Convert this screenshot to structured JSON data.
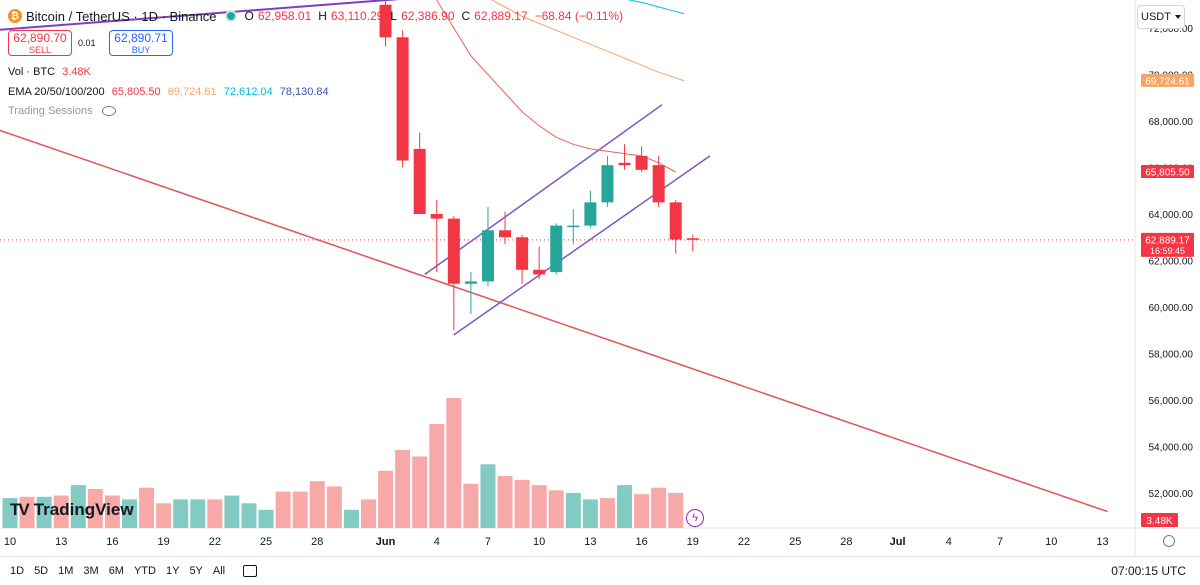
{
  "header": {
    "symbol": "Bitcoin / TetherUS · 1D · Binance",
    "ohlc": [
      {
        "key": "O",
        "value": "62,958.01"
      },
      {
        "key": "H",
        "value": "63,110.29"
      },
      {
        "key": "L",
        "value": "62,386.90"
      },
      {
        "key": "C",
        "value": "62,889.17"
      },
      {
        "key": "",
        "value": "−68.84 (−0.11%)"
      }
    ],
    "sell_price": "62,890.70",
    "sell_label": "SELL",
    "spread": "0.01",
    "buy_price": "62,890.71",
    "buy_label": "BUY",
    "vol_label": "Vol · BTC",
    "vol_value": "3.48K",
    "ema_label": "EMA 20/50/100/200",
    "ema_values": [
      "65,805.50",
      "69,724.61",
      "72,612.04",
      "78,130.84"
    ],
    "sessions_label": "Trading Sessions",
    "currency": "USDT"
  },
  "colors": {
    "up": "#26a69a",
    "down": "#f23645",
    "vol_up": "#82cbc2",
    "vol_down": "#f7a9a7",
    "ema20": "#f0605c",
    "ema50": "#f7a464",
    "ema100": "#00bcd4",
    "ema200": "#3f51b5",
    "channel": "#7e57c2",
    "trend_red": "#e0545a",
    "trend_purple": "#7e3fbf"
  },
  "brand": "TradingView",
  "periods": [
    "1D",
    "5D",
    "1M",
    "3M",
    "6M",
    "YTD",
    "1Y",
    "5Y",
    "All"
  ],
  "clock": "07:00:15 UTC",
  "chart_data": {
    "type": "candlestick",
    "xticks": [
      {
        "label": "10",
        "day": 10
      },
      {
        "label": "13",
        "day": 13
      },
      {
        "label": "16",
        "day": 16
      },
      {
        "label": "19",
        "day": 19
      },
      {
        "label": "22",
        "day": 22
      },
      {
        "label": "25",
        "day": 25
      },
      {
        "label": "28",
        "day": 28
      },
      {
        "label": "Jun",
        "day": 32
      },
      {
        "label": "4",
        "day": 35
      },
      {
        "label": "7",
        "day": 38
      },
      {
        "label": "10",
        "day": 41
      },
      {
        "label": "13",
        "day": 44
      },
      {
        "label": "16",
        "day": 47
      },
      {
        "label": "19",
        "day": 50
      },
      {
        "label": "22",
        "day": 53
      },
      {
        "label": "25",
        "day": 56
      },
      {
        "label": "28",
        "day": 59
      },
      {
        "label": "Jul",
        "day": 62
      },
      {
        "label": "4",
        "day": 65
      },
      {
        "label": "7",
        "day": 68
      },
      {
        "label": "10",
        "day": 71
      },
      {
        "label": "13",
        "day": 74
      }
    ],
    "yticks": [
      "52,000.00",
      "54,000.00",
      "56,000.00",
      "58,000.00",
      "60,000.00",
      "62,000.00",
      "64,000.00",
      "66,000.00",
      "68,000.00",
      "70,000.00",
      "72,000.00"
    ],
    "ylim": [
      51000,
      72700
    ],
    "candles": [
      {
        "day": 32,
        "o": 73000,
        "h": 73500,
        "l": 71200,
        "c": 71600
      },
      {
        "day": 33,
        "o": 71600,
        "h": 71900,
        "l": 66000,
        "c": 66300
      },
      {
        "day": 34,
        "o": 66800,
        "h": 67500,
        "l": 64000,
        "c": 64000
      },
      {
        "day": 35,
        "o": 64000,
        "h": 64600,
        "l": 61500,
        "c": 63800
      },
      {
        "day": 36,
        "o": 63800,
        "h": 63900,
        "l": 59000,
        "c": 61000
      },
      {
        "day": 37,
        "o": 61000,
        "h": 61500,
        "l": 59700,
        "c": 61100
      },
      {
        "day": 38,
        "o": 61100,
        "h": 64300,
        "l": 60900,
        "c": 63300
      },
      {
        "day": 39,
        "o": 63300,
        "h": 64100,
        "l": 62700,
        "c": 63000
      },
      {
        "day": 40,
        "o": 63000,
        "h": 63100,
        "l": 61000,
        "c": 61600
      },
      {
        "day": 41,
        "o": 61600,
        "h": 62600,
        "l": 61200,
        "c": 61400
      },
      {
        "day": 42,
        "o": 61500,
        "h": 63600,
        "l": 61400,
        "c": 63500
      },
      {
        "day": 43,
        "o": 63500,
        "h": 64200,
        "l": 62700,
        "c": 63500
      },
      {
        "day": 44,
        "o": 63500,
        "h": 65000,
        "l": 63400,
        "c": 64500
      },
      {
        "day": 45,
        "o": 64500,
        "h": 66500,
        "l": 64300,
        "c": 66100
      },
      {
        "day": 46,
        "o": 66200,
        "h": 67000,
        "l": 65900,
        "c": 66100
      },
      {
        "day": 47,
        "o": 66500,
        "h": 66900,
        "l": 65800,
        "c": 65900
      },
      {
        "day": 48,
        "o": 66100,
        "h": 66500,
        "l": 64300,
        "c": 64500
      },
      {
        "day": 49,
        "o": 64500,
        "h": 64600,
        "l": 62300,
        "c": 62900
      },
      {
        "day": 50,
        "o": 62958.01,
        "h": 63110.29,
        "l": 62386.9,
        "c": 62889.17
      }
    ],
    "volume": [
      {
        "day": 10,
        "v": 0.23,
        "up": true
      },
      {
        "day": 11,
        "v": 0.24,
        "up": false
      },
      {
        "day": 12,
        "v": 0.24,
        "up": true
      },
      {
        "day": 13,
        "v": 0.25,
        "up": false
      },
      {
        "day": 14,
        "v": 0.33,
        "up": true
      },
      {
        "day": 15,
        "v": 0.3,
        "up": false
      },
      {
        "day": 16,
        "v": 0.25,
        "up": false
      },
      {
        "day": 17,
        "v": 0.22,
        "up": true
      },
      {
        "day": 18,
        "v": 0.31,
        "up": false
      },
      {
        "day": 19,
        "v": 0.19,
        "up": false
      },
      {
        "day": 20,
        "v": 0.22,
        "up": true
      },
      {
        "day": 21,
        "v": 0.22,
        "up": true
      },
      {
        "day": 22,
        "v": 0.22,
        "up": false
      },
      {
        "day": 23,
        "v": 0.25,
        "up": true
      },
      {
        "day": 24,
        "v": 0.19,
        "up": true
      },
      {
        "day": 25,
        "v": 0.14,
        "up": true
      },
      {
        "day": 26,
        "v": 0.28,
        "up": false
      },
      {
        "day": 27,
        "v": 0.28,
        "up": false
      },
      {
        "day": 28,
        "v": 0.36,
        "up": false
      },
      {
        "day": 29,
        "v": 0.32,
        "up": false
      },
      {
        "day": 30,
        "v": 0.14,
        "up": true
      },
      {
        "day": 31,
        "v": 0.22,
        "up": false
      },
      {
        "day": 32,
        "v": 0.44,
        "up": false
      },
      {
        "day": 33,
        "v": 0.6,
        "up": false
      },
      {
        "day": 34,
        "v": 0.55,
        "up": false
      },
      {
        "day": 35,
        "v": 0.8,
        "up": false
      },
      {
        "day": 36,
        "v": 1.0,
        "up": false
      },
      {
        "day": 37,
        "v": 0.34,
        "up": false
      },
      {
        "day": 38,
        "v": 0.49,
        "up": true
      },
      {
        "day": 39,
        "v": 0.4,
        "up": false
      },
      {
        "day": 40,
        "v": 0.37,
        "up": false
      },
      {
        "day": 41,
        "v": 0.33,
        "up": false
      },
      {
        "day": 42,
        "v": 0.29,
        "up": false
      },
      {
        "day": 43,
        "v": 0.27,
        "up": true
      },
      {
        "day": 44,
        "v": 0.22,
        "up": true
      },
      {
        "day": 45,
        "v": 0.23,
        "up": false
      },
      {
        "day": 46,
        "v": 0.33,
        "up": true
      },
      {
        "day": 47,
        "v": 0.26,
        "up": false
      },
      {
        "day": 48,
        "v": 0.31,
        "up": false
      },
      {
        "day": 49,
        "v": 0.27,
        "up": false
      }
    ],
    "ema20": [
      {
        "day": 35,
        "v": 73200
      },
      {
        "day": 36,
        "v": 72000
      },
      {
        "day": 37,
        "v": 70800
      },
      {
        "day": 38,
        "v": 70000
      },
      {
        "day": 39,
        "v": 69200
      },
      {
        "day": 40,
        "v": 68400
      },
      {
        "day": 41,
        "v": 67800
      },
      {
        "day": 42,
        "v": 67300
      },
      {
        "day": 43,
        "v": 67000
      },
      {
        "day": 44,
        "v": 66800
      },
      {
        "day": 45,
        "v": 66700
      },
      {
        "day": 46,
        "v": 66600
      },
      {
        "day": 47,
        "v": 66500
      },
      {
        "day": 48,
        "v": 66200
      },
      {
        "day": 49,
        "v": 65805.5
      }
    ],
    "ema50": [
      {
        "day": 38,
        "v": 73300
      },
      {
        "day": 40,
        "v": 72500
      },
      {
        "day": 42,
        "v": 71900
      },
      {
        "day": 44,
        "v": 71300
      },
      {
        "day": 46,
        "v": 70700
      },
      {
        "day": 48,
        "v": 70100
      },
      {
        "day": 49.5,
        "v": 69724.61
      }
    ],
    "ema100": [
      {
        "day": 45,
        "v": 73400
      },
      {
        "day": 47,
        "v": 73100
      },
      {
        "day": 49.5,
        "v": 72612.04
      }
    ],
    "channel_lower": [
      {
        "day": 36,
        "v": 58800
      },
      {
        "day": 51,
        "v": 66500
      }
    ],
    "channel_upper": [
      {
        "day": 34.3,
        "v": 61400
      },
      {
        "day": 48.2,
        "v": 68700
      }
    ],
    "trend_red": [
      {
        "day": 9,
        "v": 67700
      },
      {
        "day": 74.3,
        "v": 51200
      }
    ],
    "trend_purple": [
      {
        "day": 9,
        "v": 71900
      },
      {
        "day": 35.5,
        "v": 73400
      }
    ],
    "last_price": 62889.17,
    "price_labels": [
      {
        "text": "69,724.61",
        "value": 69724.61,
        "color": "#f7a464"
      },
      {
        "text": "65,805.50",
        "value": 65805.5,
        "color": "#f23645"
      },
      {
        "text": "62,889.17",
        "sub": "16:59:45",
        "value": 62889.17,
        "color": "#f23645"
      }
    ],
    "vol_tag": "3.48K"
  }
}
